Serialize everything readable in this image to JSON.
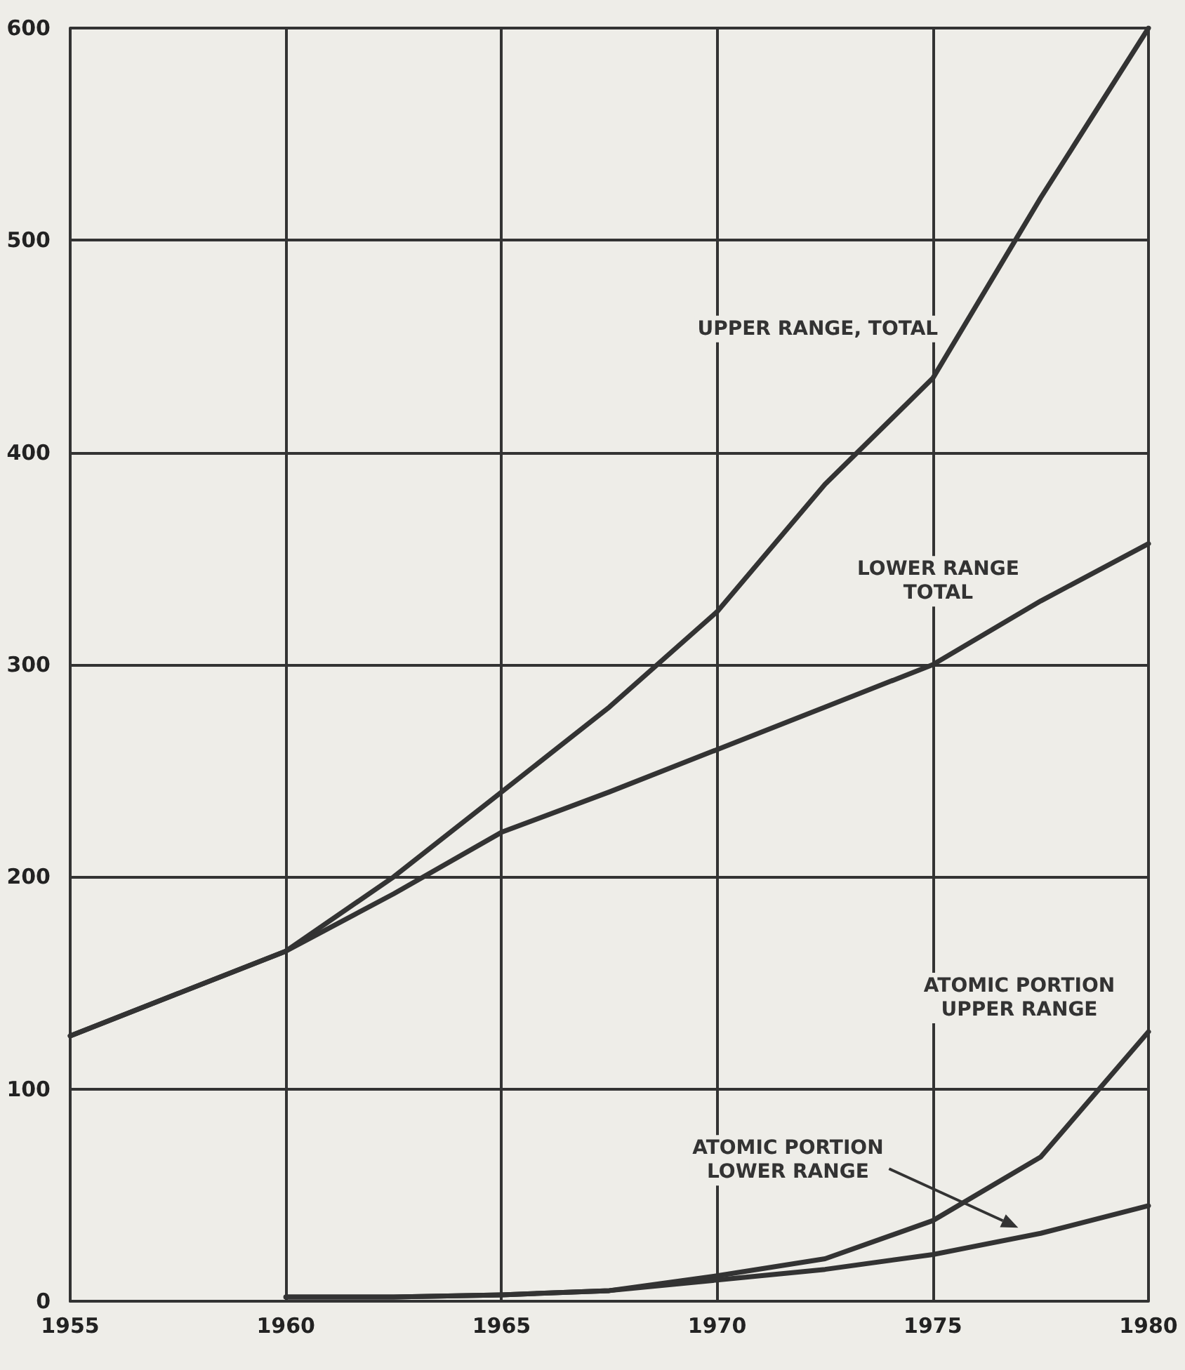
{
  "chart_data": {
    "type": "line",
    "x": [
      1955,
      1957.5,
      1960,
      1962.5,
      1965,
      1967.5,
      1970,
      1972.5,
      1975,
      1977.5,
      1980
    ],
    "series": [
      {
        "name": "UPPER RANGE, TOTAL",
        "color": "#333333",
        "values": [
          125,
          145,
          165,
          200,
          240,
          280,
          325,
          385,
          435,
          520,
          600
        ]
      },
      {
        "name": "LOWER RANGE\nTOTAL",
        "color": "#333333",
        "values": [
          125,
          145,
          165,
          192,
          221,
          240,
          260,
          280,
          300,
          330,
          357
        ]
      },
      {
        "name": "ATOMIC PORTION\nUPPER RANGE",
        "color": "#333333",
        "x": [
          1960,
          1962.5,
          1965,
          1967.5,
          1970,
          1972.5,
          1975,
          1977.5,
          1980
        ],
        "values": [
          2,
          2,
          3,
          5,
          12,
          20,
          38,
          68,
          127
        ]
      },
      {
        "name": "ATOMIC PORTION\nLOWER RANGE",
        "color": "#333333",
        "x": [
          1960,
          1962.5,
          1965,
          1967.5,
          1970,
          1972.5,
          1975,
          1977.5,
          1980
        ],
        "values": [
          2,
          2,
          3,
          5,
          10,
          15,
          22,
          32,
          45
        ]
      }
    ],
    "xlim": [
      1955,
      1980
    ],
    "xticks": [
      1955,
      1960,
      1965,
      1970,
      1975,
      1980
    ],
    "ylim": [
      0,
      600
    ],
    "yticks": [
      0,
      100,
      200,
      300,
      400,
      500,
      600
    ],
    "grid": true,
    "marker": "none",
    "line_style": "solid"
  }
}
